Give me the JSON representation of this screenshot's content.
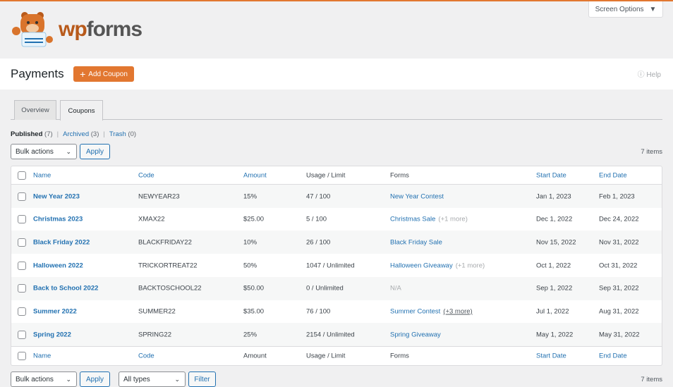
{
  "app": {
    "logo_text": "wpforms",
    "accent": "#e27730",
    "link_color": "#2271b1"
  },
  "screen_options": "Screen Options",
  "page": {
    "title": "Payments",
    "add_button": "Add Coupon",
    "help": "Help"
  },
  "tabs": [
    {
      "label": "Overview",
      "active": false
    },
    {
      "label": "Coupons",
      "active": true
    }
  ],
  "filters": [
    {
      "label": "Published",
      "count": "(7)",
      "current": true
    },
    {
      "label": "Archived",
      "count": "(3)"
    },
    {
      "label": "Trash",
      "count": "(0)"
    }
  ],
  "filter_separator": "|",
  "bulk": {
    "select": "Bulk actions",
    "apply": "Apply",
    "types": "All types",
    "filter": "Filter",
    "items": "7 items"
  },
  "columns": [
    "Name",
    "Code",
    "Amount",
    "Usage / Limit",
    "Forms",
    "Start Date",
    "End Date"
  ],
  "rows": [
    {
      "name": "New Year 2023",
      "code": "NEWYEAR23",
      "amount": "15%",
      "usage": "47 / 100",
      "form": "New Year Contest",
      "more": "",
      "start": "Jan 1, 2023",
      "end": "Feb 1, 2023"
    },
    {
      "name": "Christmas 2023",
      "code": "XMAX22",
      "amount": "$25.00",
      "usage": "5 / 100",
      "form": "Christmas Sale",
      "more": "(+1 more)",
      "start": "Dec 1, 2022",
      "end": "Dec 24, 2022"
    },
    {
      "name": "Black Friday 2022",
      "code": "BLACKFRIDAY22",
      "amount": "10%",
      "usage": "26 / 100",
      "form": "Black Friday Sale",
      "more": "",
      "start": "Nov 15, 2022",
      "end": "Nov 31, 2022"
    },
    {
      "name": "Halloween 2022",
      "code": "TRICKORTREAT22",
      "amount": "50%",
      "usage": "1047 / Unlimited",
      "form": "Halloween Giveaway",
      "more": "(+1 more)",
      "start": "Oct 1, 2022",
      "end": "Oct 31, 2022"
    },
    {
      "name": "Back to School 2022",
      "code": "BACKTOSCHOOL22",
      "amount": "$50.00",
      "usage": "0 / Unlimited",
      "form": "N/A",
      "more": "",
      "start": "Sep 1, 2022",
      "end": "Sep 31, 2022"
    },
    {
      "name": "Summer 2022",
      "code": "SUMMER22",
      "amount": "$35.00",
      "usage": "76 / 100",
      "form": "Summer Contest",
      "more": "(+3 more)",
      "start": "Jul 1, 2022",
      "end": "Aug 31, 2022"
    },
    {
      "name": "Spring 2022",
      "code": "SPRING22",
      "amount": "25%",
      "usage": "2154 / Unlimited",
      "form": "Spring Giveaway",
      "more": "",
      "start": "May 1, 2022",
      "end": "May 31, 2022"
    }
  ]
}
